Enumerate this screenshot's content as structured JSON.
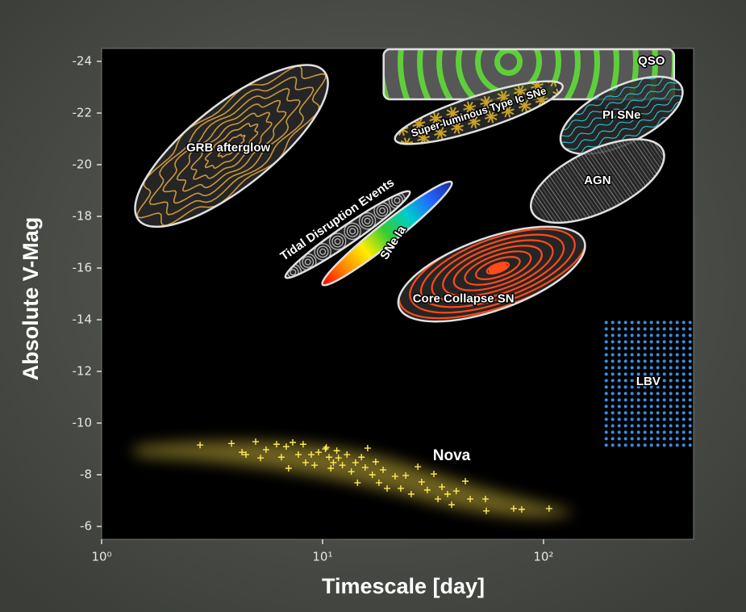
{
  "chart_data": {
    "type": "scatter",
    "x_label": "Timescale [day]",
    "y_label": "Absolute V-Mag",
    "xscale": "log",
    "xlim": [
      1,
      478
    ],
    "ylim": [
      -5.5,
      -24.5
    ],
    "xticks": [
      {
        "value": 1,
        "label": "10⁰"
      },
      {
        "value": 10,
        "label": "10¹"
      },
      {
        "value": 100,
        "label": "10²"
      }
    ],
    "yticks": [
      -24,
      -22,
      -20,
      -18,
      -16,
      -14,
      -12,
      -10,
      -8,
      -6
    ],
    "regions": [
      {
        "name": "GRB afterglow",
        "shape": "ellipse",
        "x": [
          1.47,
          10.2
        ],
        "y": [
          -17.86,
          -23.6
        ],
        "width": 3.2,
        "color": "#c8963c",
        "pattern": "contours"
      },
      {
        "name": "QSO",
        "shape": "rect",
        "x": [
          18.9,
          390
        ],
        "y": [
          -22.53,
          -24.47
        ],
        "color": "#5ecf3a",
        "pattern": "arcs"
      },
      {
        "name": "Super-luminous Type Ic SNe",
        "shape": "ellipse",
        "x": [
          21.3,
          122
        ],
        "y": [
          -20.97,
          -23.06
        ],
        "width": 1.3,
        "color": "#c9a227",
        "pattern": "bursts"
      },
      {
        "name": "PI SNe",
        "shape": "ellipse",
        "x": [
          121,
          421
        ],
        "y": [
          -20.79,
          -23.03
        ],
        "width": 2.2,
        "color": "#2fb8c8",
        "pattern": "squiggles"
      },
      {
        "name": "AGN",
        "shape": "ellipse",
        "x": [
          88.9,
          347
        ],
        "y": [
          -18.17,
          -20.57
        ],
        "width": 2.4,
        "color": "#a0a0a0",
        "pattern": "stripes"
      },
      {
        "name": "Tidal Disruption Events",
        "shape": "ellipse",
        "x": [
          6.8,
          24.8
        ],
        "y": [
          -15.64,
          -18.95
        ],
        "width": 0.7,
        "color": "#b8b8b8",
        "pattern": "swirls"
      },
      {
        "name": "SNe Ia",
        "shape": "ellipse",
        "x": [
          10.0,
          38.4
        ],
        "y": [
          -15.36,
          -19.32
        ],
        "width": 0.8,
        "pattern": "rainbow"
      },
      {
        "name": "Core Collapse SN",
        "shape": "ellipse",
        "x": [
          22.2,
          153
        ],
        "y": [
          -14.49,
          -17.04
        ],
        "width": 2.8,
        "color": "#ff4a1a",
        "pattern": "rings"
      },
      {
        "name": "LBV",
        "shape": "rect",
        "x": [
          186,
          478
        ],
        "y": [
          -8.93,
          -14.02
        ],
        "color": "#3a8fe0",
        "pattern": "dots"
      }
    ],
    "series": [
      {
        "name": "Nova",
        "color": "#ffe85a",
        "x": [
          2.79,
          3.87,
          4.32,
          4.5,
          4.98,
          5.24,
          5.55,
          6.19,
          6.51,
          6.85,
          7.02,
          7.33,
          7.77,
          8.17,
          8.38,
          8.89,
          9.2,
          9.59,
          10.3,
          10.4,
          10.7,
          10.9,
          11.2,
          11.6,
          11.8,
          12.3,
          12.9,
          13.5,
          14.1,
          14.4,
          15.0,
          15.6,
          16.0,
          16.8,
          17.4,
          18.0,
          18.8,
          19.6,
          21.3,
          22.6,
          23.8,
          25.2,
          27.0,
          28.1,
          29.8,
          31.9,
          33.3,
          34.7,
          36.8,
          38.4,
          40.3,
          44.3,
          46.6,
          54.6,
          55.1,
          73.3,
          79.7,
          106
        ],
        "y": [
          -9.15,
          -9.21,
          -8.87,
          -8.78,
          -9.28,
          -8.65,
          -8.97,
          -9.18,
          -8.68,
          -9.09,
          -8.25,
          -9.25,
          -8.78,
          -9.18,
          -8.47,
          -8.78,
          -8.37,
          -8.87,
          -9.0,
          -9.06,
          -8.68,
          -8.25,
          -8.47,
          -8.93,
          -8.65,
          -8.37,
          -8.78,
          -8.12,
          -8.47,
          -7.69,
          -8.68,
          -8.28,
          -9.03,
          -8.0,
          -8.5,
          -7.69,
          -8.19,
          -7.47,
          -7.94,
          -7.47,
          -7.97,
          -7.25,
          -8.31,
          -7.72,
          -7.41,
          -8.03,
          -7.06,
          -7.53,
          -7.25,
          -6.84,
          -7.37,
          -7.75,
          -7.06,
          -7.06,
          -6.6,
          -6.69,
          -6.66,
          -6.69
        ]
      }
    ]
  }
}
